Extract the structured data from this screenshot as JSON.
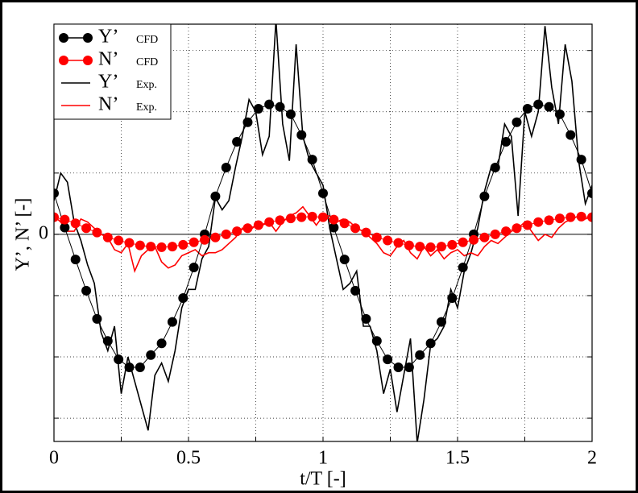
{
  "chart_data": {
    "type": "line",
    "xlabel": "t/T [-]",
    "ylabel": "Y’, N’ [-]",
    "xlim": [
      0,
      2
    ],
    "ylim": [
      -3.38,
      3.43
    ],
    "xticks": [
      0,
      {
        "value": 0.25,
        "label": null
      },
      0.5,
      {
        "value": 0.75,
        "label": null
      },
      1,
      {
        "value": 1.25,
        "label": null
      },
      1.5,
      {
        "value": 1.75,
        "label": null
      },
      2
    ],
    "yticks": [
      {
        "value": -3,
        "label": null
      },
      {
        "value": -2,
        "label": null
      },
      {
        "value": -1,
        "label": null
      },
      0,
      {
        "value": 1,
        "label": null
      },
      {
        "value": 2,
        "label": null
      },
      {
        "value": 3,
        "label": null
      }
    ],
    "grid": true,
    "zero_line": true,
    "legend": "upper left",
    "series": [
      {
        "name": "Y’",
        "source": "CFD",
        "color": "#000000",
        "marker": true,
        "x": [
          0,
          0.04,
          0.08,
          0.12,
          0.16,
          0.2,
          0.24,
          0.28,
          0.32,
          0.36,
          0.4,
          0.44,
          0.48,
          0.52,
          0.56,
          0.6,
          0.64,
          0.68,
          0.72,
          0.76,
          0.8,
          0.84,
          0.88,
          0.92,
          0.96,
          1,
          1.04,
          1.08,
          1.12,
          1.16,
          1.2,
          1.24,
          1.28,
          1.32,
          1.36,
          1.4,
          1.44,
          1.48,
          1.52,
          1.56,
          1.6,
          1.64,
          1.68,
          1.72,
          1.76,
          1.8,
          1.84,
          1.88,
          1.92,
          1.96,
          2
        ],
        "values": [
          0.67,
          0.11,
          -0.41,
          -0.92,
          -1.38,
          -1.74,
          -2.04,
          -2.17,
          -2.17,
          -1.97,
          -1.78,
          -1.43,
          -1.04,
          -0.54,
          0,
          0.62,
          1.09,
          1.51,
          1.83,
          2.05,
          2.12,
          2.08,
          1.96,
          1.62,
          1.22,
          0.67,
          0.11,
          -0.41,
          -0.92,
          -1.38,
          -1.74,
          -2.04,
          -2.17,
          -2.17,
          -1.97,
          -1.78,
          -1.43,
          -1.04,
          -0.54,
          0,
          0.62,
          1.09,
          1.51,
          1.83,
          2.05,
          2.12,
          2.08,
          1.96,
          1.62,
          1.22,
          0.67
        ]
      },
      {
        "name": "N’",
        "source": "CFD",
        "color": "#ff0000",
        "marker": true,
        "x": [
          0,
          0.04,
          0.08,
          0.12,
          0.16,
          0.2,
          0.24,
          0.28,
          0.32,
          0.36,
          0.4,
          0.44,
          0.48,
          0.52,
          0.56,
          0.6,
          0.64,
          0.68,
          0.72,
          0.76,
          0.8,
          0.84,
          0.88,
          0.92,
          0.96,
          1,
          1.04,
          1.08,
          1.12,
          1.16,
          1.2,
          1.24,
          1.28,
          1.32,
          1.36,
          1.4,
          1.44,
          1.48,
          1.52,
          1.56,
          1.6,
          1.64,
          1.68,
          1.72,
          1.76,
          1.8,
          1.84,
          1.88,
          1.92,
          1.96,
          2
        ],
        "values": [
          0.28,
          0.24,
          0.18,
          0.1,
          0.03,
          -0.05,
          -0.1,
          -0.14,
          -0.18,
          -0.2,
          -0.21,
          -0.2,
          -0.17,
          -0.13,
          -0.09,
          -0.05,
          0,
          0.05,
          0.1,
          0.15,
          0.2,
          0.23,
          0.26,
          0.28,
          0.29,
          0.28,
          0.24,
          0.18,
          0.1,
          0.03,
          -0.05,
          -0.1,
          -0.14,
          -0.18,
          -0.2,
          -0.21,
          -0.2,
          -0.17,
          -0.13,
          -0.09,
          -0.05,
          0,
          0.05,
          0.1,
          0.15,
          0.2,
          0.23,
          0.26,
          0.28,
          0.29,
          0.28
        ]
      },
      {
        "name": "Y’",
        "source": "Exp.",
        "color": "#000000",
        "marker": false,
        "x": [
          0,
          0.025,
          0.05,
          0.075,
          0.1,
          0.125,
          0.15,
          0.175,
          0.2,
          0.225,
          0.25,
          0.275,
          0.3,
          0.325,
          0.35,
          0.375,
          0.4,
          0.425,
          0.45,
          0.475,
          0.5,
          0.525,
          0.55,
          0.575,
          0.6,
          0.625,
          0.65,
          0.675,
          0.7,
          0.725,
          0.75,
          0.775,
          0.8,
          0.825,
          0.85,
          0.875,
          0.9,
          0.925,
          0.95,
          0.975,
          1,
          1.025,
          1.05,
          1.075,
          1.1,
          1.125,
          1.15,
          1.175,
          1.2,
          1.225,
          1.25,
          1.275,
          1.3,
          1.325,
          1.35,
          1.375,
          1.4,
          1.425,
          1.45,
          1.475,
          1.5,
          1.525,
          1.55,
          1.575,
          1.6,
          1.625,
          1.65,
          1.675,
          1.7,
          1.725,
          1.75,
          1.775,
          1.8,
          1.825,
          1.85,
          1.875,
          1.9,
          1.925,
          1.95,
          1.975,
          2
        ],
        "values": [
          0.55,
          1.0,
          0.85,
          0.2,
          -0.1,
          -0.5,
          -0.8,
          -1.6,
          -1.9,
          -1.5,
          -2.6,
          -2.0,
          -2.4,
          -2.8,
          -3.2,
          -2.3,
          -2.1,
          -2.4,
          -1.9,
          -1.2,
          -0.9,
          -0.9,
          -0.4,
          -0.2,
          0.6,
          0.4,
          0.55,
          1.1,
          1.6,
          2.2,
          2.0,
          1.3,
          1.6,
          3.5,
          1.8,
          1.2,
          3.1,
          1.6,
          1.2,
          1.0,
          0.8,
          0.1,
          -0.4,
          -0.9,
          -0.8,
          -0.6,
          -1.5,
          -1.5,
          -1.9,
          -2.6,
          -2.2,
          -2.9,
          -2.3,
          -1.7,
          -3.4,
          -2.7,
          -1.8,
          -1.7,
          -1.5,
          -0.9,
          -1.2,
          -0.6,
          -0.3,
          0.1,
          0.7,
          1.1,
          1.1,
          1.8,
          1.6,
          0.3,
          2.0,
          1.6,
          2.0,
          3.4,
          2.4,
          1.8,
          3.1,
          2.5,
          1.2,
          0.5,
          0.8
        ]
      },
      {
        "name": "N’",
        "source": "Exp.",
        "color": "#ff0000",
        "marker": false,
        "x": [
          0,
          0.025,
          0.05,
          0.075,
          0.1,
          0.125,
          0.15,
          0.175,
          0.2,
          0.225,
          0.25,
          0.275,
          0.3,
          0.325,
          0.35,
          0.375,
          0.4,
          0.425,
          0.45,
          0.475,
          0.5,
          0.525,
          0.55,
          0.575,
          0.6,
          0.625,
          0.65,
          0.675,
          0.7,
          0.725,
          0.75,
          0.775,
          0.8,
          0.825,
          0.85,
          0.875,
          0.9,
          0.925,
          0.95,
          0.975,
          1,
          1.025,
          1.05,
          1.075,
          1.1,
          1.125,
          1.15,
          1.175,
          1.2,
          1.225,
          1.25,
          1.275,
          1.3,
          1.325,
          1.35,
          1.375,
          1.4,
          1.425,
          1.45,
          1.475,
          1.5,
          1.525,
          1.55,
          1.575,
          1.6,
          1.625,
          1.65,
          1.675,
          1.7,
          1.725,
          1.75,
          1.775,
          1.8,
          1.825,
          1.85,
          1.875,
          1.9,
          1.925,
          1.95,
          1.975,
          2
        ],
        "values": [
          0.3,
          0.2,
          0.05,
          0.05,
          0.25,
          0.2,
          0.1,
          0.0,
          -0.05,
          -0.25,
          -0.3,
          -0.15,
          -0.6,
          -0.35,
          -0.25,
          -0.2,
          -0.45,
          -0.55,
          -0.5,
          -0.35,
          -0.3,
          -0.25,
          -0.35,
          -0.3,
          -0.3,
          -0.25,
          -0.15,
          -0.05,
          0.1,
          0.05,
          0.15,
          0.15,
          0.2,
          0.05,
          0.2,
          0.3,
          0.35,
          0.45,
          0.3,
          0.15,
          0.3,
          0.3,
          0.2,
          0.25,
          0.2,
          0.1,
          0.05,
          -0.05,
          -0.15,
          -0.3,
          -0.35,
          -0.2,
          -0.1,
          -0.3,
          -0.4,
          -0.2,
          -0.35,
          -0.25,
          -0.4,
          -0.3,
          -0.25,
          -0.35,
          -0.3,
          -0.35,
          -0.2,
          -0.1,
          -0.15,
          -0.05,
          0.05,
          0.1,
          0.2,
          0.05,
          -0.1,
          0.0,
          -0.05,
          0.1,
          0.2,
          0.25,
          0.3,
          0.25,
          0.3
        ]
      }
    ]
  }
}
